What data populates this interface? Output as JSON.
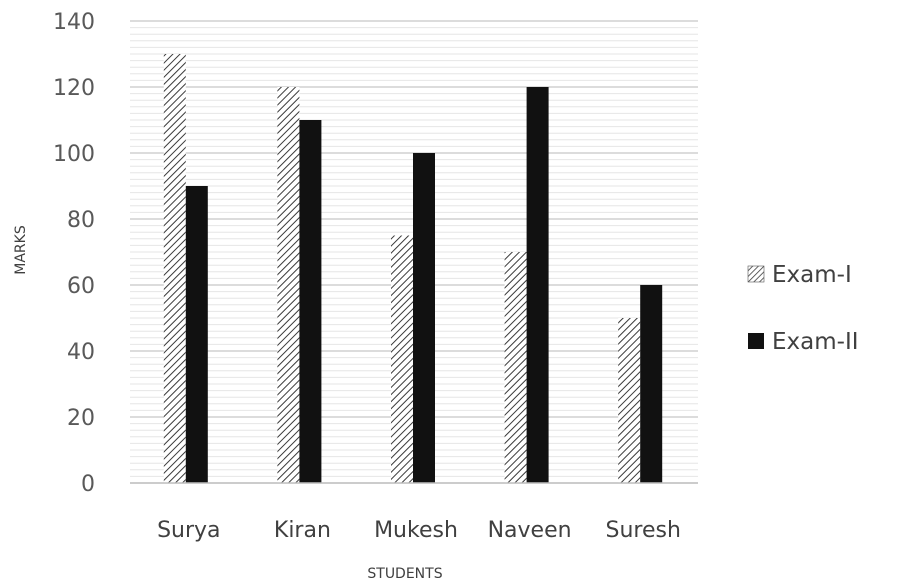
{
  "chart_data": {
    "type": "bar",
    "categories": [
      "Surya",
      "Kiran",
      "Mukesh",
      "Naveen",
      "Suresh"
    ],
    "series": [
      {
        "name": "Exam-I",
        "values": [
          130,
          120,
          75,
          70,
          50
        ],
        "pattern": "hatch",
        "color": "#333333"
      },
      {
        "name": "Exam-II",
        "values": [
          90,
          110,
          100,
          120,
          60
        ],
        "pattern": "solid",
        "color": "#111111"
      }
    ],
    "title": "",
    "xlabel": "STUDENTS",
    "ylabel": "MARKS",
    "ylim": [
      0,
      140
    ],
    "yticks": [
      0,
      20,
      40,
      60,
      80,
      100,
      120,
      140
    ],
    "grid": true,
    "legend_position": "right"
  }
}
